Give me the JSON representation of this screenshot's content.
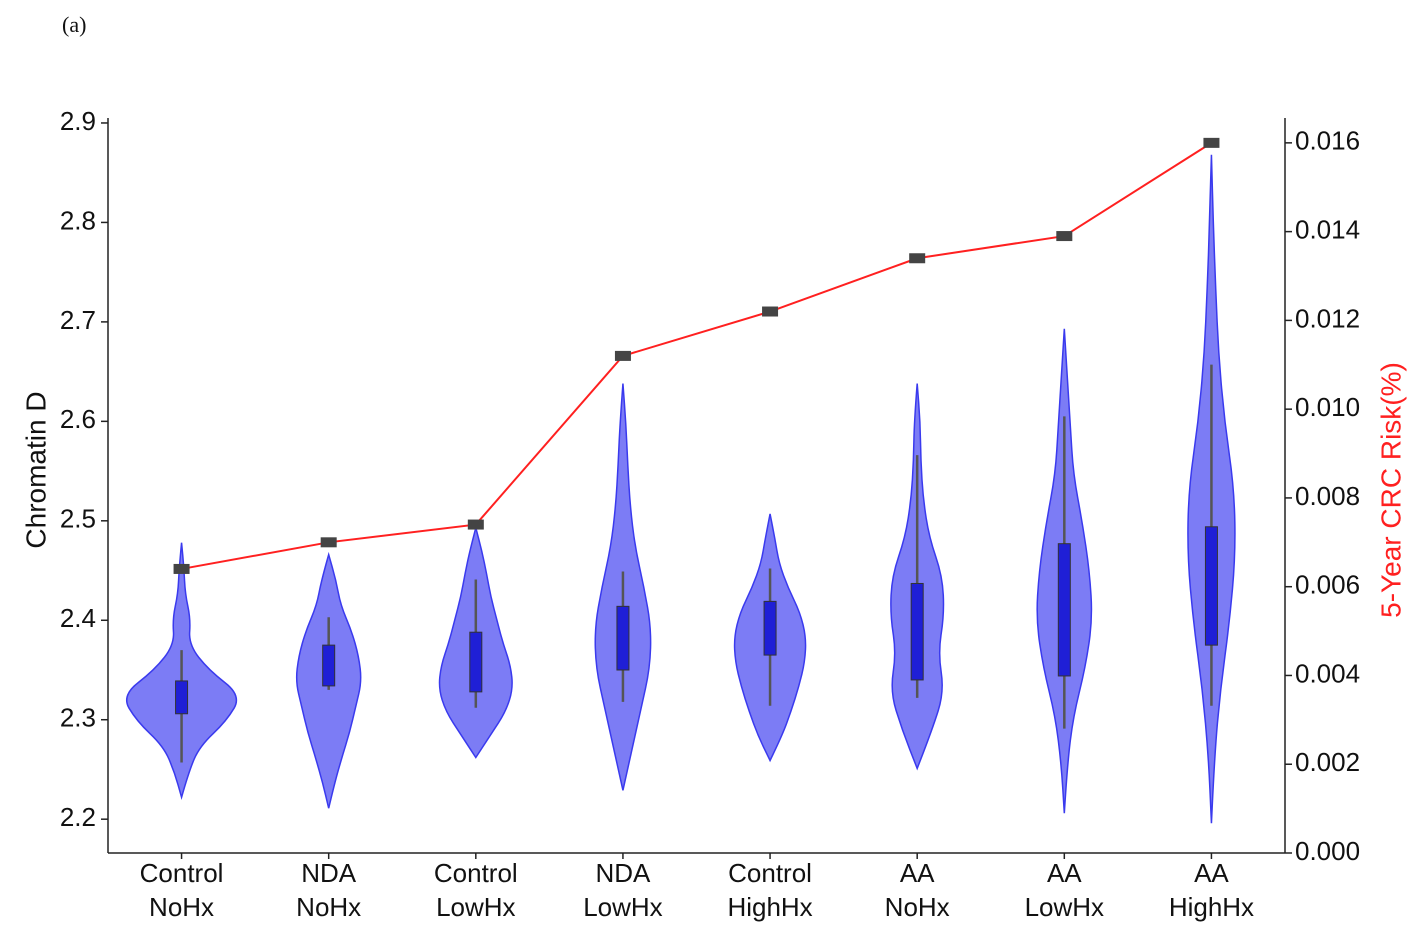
{
  "chart_data": {
    "type": "violin",
    "label": "(a)",
    "ylabel": "Chromatin D",
    "y2label": "5-Year CRC Risk(%)",
    "categories": [
      [
        "Control",
        "NoHx"
      ],
      [
        "NDA",
        "NoHx"
      ],
      [
        "Control",
        "LowHx"
      ],
      [
        "NDA",
        "LowHx"
      ],
      [
        "Control",
        "HighHx"
      ],
      [
        "AA",
        "NoHx"
      ],
      [
        "AA",
        "LowHx"
      ],
      [
        "AA",
        "HighHx"
      ]
    ],
    "violin_color": "#5b5bf2",
    "box_color": "#1f1fd6",
    "violins": [
      {
        "min": 2.222,
        "max": 2.478,
        "q1": 2.306,
        "q3": 2.339,
        "whislo": 2.257,
        "whishi": 2.37,
        "density": [
          0,
          0.12,
          0.3,
          0.75,
          1.0,
          0.45,
          0.12,
          0.15,
          0.06,
          0.04,
          0
        ]
      },
      {
        "min": 2.211,
        "max": 2.466,
        "q1": 2.334,
        "q3": 2.375,
        "whislo": 2.33,
        "whishi": 2.403,
        "density": [
          0,
          0.1,
          0.22,
          0.35,
          0.45,
          0.55,
          0.5,
          0.38,
          0.2,
          0.12,
          0
        ]
      },
      {
        "min": 2.262,
        "max": 2.493,
        "q1": 2.328,
        "q3": 2.388,
        "whislo": 2.312,
        "whishi": 2.441,
        "density": [
          0,
          0.25,
          0.5,
          0.62,
          0.58,
          0.45,
          0.35,
          0.25,
          0.18,
          0.1,
          0
        ]
      },
      {
        "min": 2.229,
        "max": 2.638,
        "q1": 2.35,
        "q3": 2.414,
        "whislo": 2.318,
        "whishi": 2.449,
        "density": [
          0,
          0.15,
          0.3,
          0.45,
          0.47,
          0.35,
          0.2,
          0.12,
          0.08,
          0.05,
          0
        ]
      },
      {
        "min": 2.259,
        "max": 2.507,
        "q1": 2.365,
        "q3": 2.419,
        "whislo": 2.314,
        "whishi": 2.452,
        "density": [
          0,
          0.2,
          0.35,
          0.48,
          0.58,
          0.6,
          0.5,
          0.3,
          0.15,
          0.08,
          0
        ]
      },
      {
        "min": 2.251,
        "max": 2.638,
        "q1": 2.34,
        "q3": 2.437,
        "whislo": 2.322,
        "whishi": 2.566,
        "density": [
          0,
          0.25,
          0.45,
          0.35,
          0.45,
          0.42,
          0.2,
          0.1,
          0.06,
          0.05,
          0
        ]
      },
      {
        "min": 2.206,
        "max": 2.693,
        "q1": 2.344,
        "q3": 2.477,
        "whislo": 2.291,
        "whishi": 2.605,
        "density": [
          0,
          0.05,
          0.15,
          0.35,
          0.47,
          0.42,
          0.3,
          0.15,
          0.1,
          0.05,
          0
        ]
      },
      {
        "min": 2.196,
        "max": 2.868,
        "q1": 2.375,
        "q3": 2.494,
        "whislo": 2.314,
        "whishi": 2.657,
        "density": [
          0,
          0.05,
          0.15,
          0.3,
          0.4,
          0.38,
          0.22,
          0.12,
          0.07,
          0.03,
          0
        ]
      }
    ],
    "risk": {
      "color": "#ff2020",
      "marker_color": "#444444",
      "axis": "y2",
      "values": [
        0.0064,
        0.007,
        0.0074,
        0.0112,
        0.0122,
        0.0134,
        0.0139,
        0.016
      ]
    },
    "ylim": [
      2.166,
      2.905
    ],
    "yticks": [
      2.2,
      2.3,
      2.4,
      2.5,
      2.6,
      2.7,
      2.8,
      2.9
    ],
    "y2lim": [
      0,
      0.01656
    ],
    "y2ticks": [
      {
        "value": 0,
        "label": "0.000"
      },
      {
        "value": 0.002,
        "label": "0.002"
      },
      {
        "value": 0.004,
        "label": "0.004"
      },
      {
        "value": 0.006,
        "label": "0.006"
      },
      {
        "value": 0.008,
        "label": "0.008"
      },
      {
        "value": 0.01,
        "label": "0.010"
      },
      {
        "value": 0.012,
        "label": "0.012"
      },
      {
        "value": 0.014,
        "label": "0.014"
      },
      {
        "value": 0.016,
        "label": "0.016"
      }
    ],
    "y2label_color": "#ff2020"
  }
}
